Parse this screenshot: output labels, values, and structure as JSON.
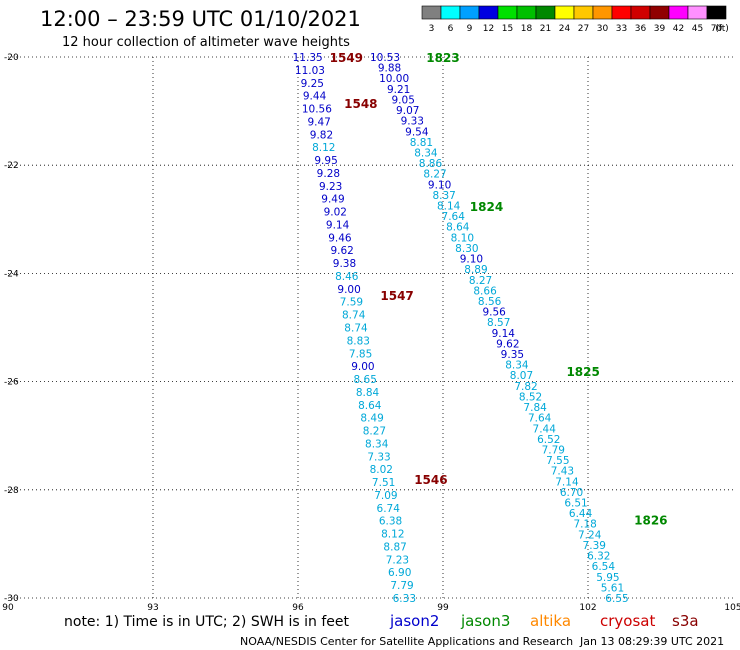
{
  "header": {
    "title": "12:00 – 23:59 UTC 01/10/2021",
    "subtitle": "12 hour collection of altimeter wave heights"
  },
  "colorbar": {
    "unit": "(ft)",
    "ticks": [
      "3",
      "6",
      "9",
      "12",
      "15",
      "18",
      "21",
      "24",
      "27",
      "30",
      "33",
      "36",
      "39",
      "42",
      "45",
      "70"
    ],
    "colors": [
      "#808080",
      "#00ffff",
      "#00a0ff",
      "#0000e0",
      "#00e000",
      "#00c000",
      "#008800",
      "#ffff00",
      "#ffc800",
      "#ff9600",
      "#ff0000",
      "#d00000",
      "#900000",
      "#ff00ff",
      "#ff90ff",
      "#000000"
    ]
  },
  "footer": {
    "note": "note:  1) Time is in UTC;  2) SWH is in feet",
    "credit": "NOAA/NESDIS Center for Satellite Applications and Research",
    "timestamp": "Jan 13 08:29:39 UTC 2021",
    "satellites": [
      {
        "name": "jason2",
        "color": "#0000cc"
      },
      {
        "name": "jason3",
        "color": "#008800"
      },
      {
        "name": "altika",
        "color": "#ff8800"
      },
      {
        "name": "cryosat",
        "color": "#cc0000"
      },
      {
        "name": "s3a",
        "color": "#880000"
      }
    ]
  },
  "chart_data": {
    "type": "scatter",
    "xlim": [
      90,
      105
    ],
    "ylim": [
      -30,
      -20
    ],
    "x_ticks": [
      "90",
      "93",
      "96",
      "99",
      "102",
      "105"
    ],
    "y_ticks": [
      "-20",
      "-22",
      "-24",
      "-26",
      "-28",
      "-30"
    ],
    "grid": true,
    "tracks": [
      {
        "label": "1549",
        "label_color": "#880000",
        "label_pos": [
          97.0,
          -20.0
        ],
        "start": [
          96.2,
          -20.0
        ],
        "end": [
          98.2,
          -30.0
        ],
        "values": [
          "11.35",
          "11.03",
          "9.25",
          "9.44",
          "10.56",
          "9.47",
          "9.82",
          "8.12",
          "9.95",
          "9.28",
          "9.23",
          "9.49",
          "9.02",
          "9.14",
          "9.46",
          "9.62",
          "9.38",
          "8.46",
          "9.00",
          "7.59",
          "8.74",
          "8.74",
          "8.83",
          "7.85",
          "9.00",
          "8.65",
          "8.84",
          "8.64",
          "8.49",
          "8.27",
          "8.34",
          "7.33",
          "8.02",
          "7.51",
          "7.09",
          "6.74",
          "6.38",
          "8.12",
          "8.87",
          "7.23",
          "6.90",
          "7.79",
          "6.33"
        ]
      },
      {
        "label": "1823",
        "label_color": "#008800",
        "label_pos": [
          99.0,
          -20.0
        ],
        "start": [
          97.8,
          -20.0
        ],
        "end": [
          102.6,
          -30.0
        ],
        "values": [
          "10.53",
          "9.88",
          "10.00",
          "9.21",
          "9.05",
          "9.07",
          "9.33",
          "9.54",
          "8.81",
          "8.34",
          "8.86",
          "8.27",
          "9.10",
          "8.37",
          "8.14",
          "7.64",
          "8.64",
          "8.10",
          "8.30",
          "9.10",
          "8.89",
          "8.27",
          "8.66",
          "8.56",
          "9.56",
          "8.57",
          "9.14",
          "9.62",
          "9.35",
          "8.34",
          "8.07",
          "7.82",
          "8.52",
          "7.84",
          "7.64",
          "7.44",
          "6.52",
          "7.79",
          "7.55",
          "7.43",
          "7.14",
          "6.70",
          "6.51",
          "6.44",
          "7.18",
          "7.24",
          "7.39",
          "6.32",
          "6.54",
          "5.95",
          "5.61",
          "6.55"
        ]
      }
    ],
    "pass_labels": [
      {
        "text": "1548",
        "color": "#880000",
        "x": 97.3,
        "y": -20.85
      },
      {
        "text": "1824",
        "color": "#008800",
        "x": 99.9,
        "y": -22.75
      },
      {
        "text": "1547",
        "color": "#880000",
        "x": 98.05,
        "y": -24.4
      },
      {
        "text": "1825",
        "color": "#008800",
        "x": 101.9,
        "y": -25.8
      },
      {
        "text": "1546",
        "color": "#880000",
        "x": 98.75,
        "y": -27.8
      },
      {
        "text": "1826",
        "color": "#008800",
        "x": 103.3,
        "y": -28.55
      }
    ]
  }
}
